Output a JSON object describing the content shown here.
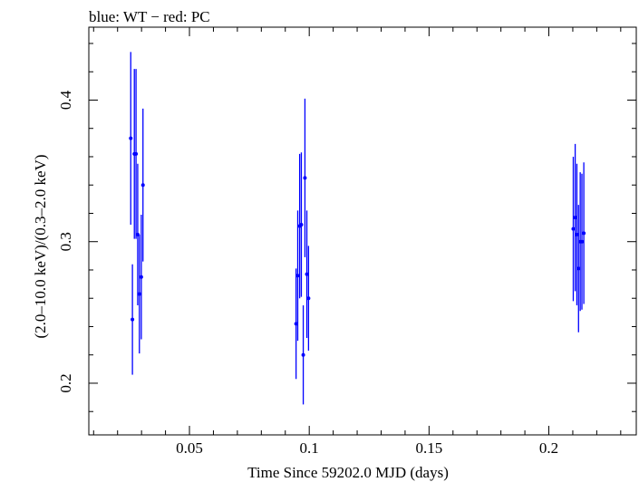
{
  "chart_data": {
    "type": "scatter",
    "title": "blue: WT − red: PC",
    "xlabel": "Time Since 59202.0 MJD (days)",
    "ylabel": "(2.0–10.0 keV)/(0.3–2.0 keV)",
    "xlim": [
      0.008,
      0.2365
    ],
    "ylim": [
      0.1635,
      0.4515
    ],
    "x_ticks": [
      {
        "value": 0.05,
        "label": "0.05"
      },
      {
        "value": 0.1,
        "label": "0.1"
      },
      {
        "value": 0.15,
        "label": "0.15"
      },
      {
        "value": 0.2,
        "label": "0.2"
      }
    ],
    "y_ticks": [
      {
        "value": 0.2,
        "label": "0.2"
      },
      {
        "value": 0.3,
        "label": "0.3"
      },
      {
        "value": 0.4,
        "label": "0.4"
      }
    ],
    "x_minor_step": 0.01,
    "y_minor_step": 0.02,
    "grid": false,
    "series": [
      {
        "name": "WT",
        "color": "#0000ff",
        "points": [
          {
            "x": 0.0255,
            "y": 0.373,
            "err": 0.061
          },
          {
            "x": 0.0262,
            "y": 0.245,
            "err": 0.039
          },
          {
            "x": 0.027,
            "y": 0.362,
            "err": 0.06
          },
          {
            "x": 0.0277,
            "y": 0.362,
            "err": 0.06
          },
          {
            "x": 0.0284,
            "y": 0.305,
            "err": 0.05
          },
          {
            "x": 0.0291,
            "y": 0.263,
            "err": 0.042
          },
          {
            "x": 0.0299,
            "y": 0.275,
            "err": 0.044
          },
          {
            "x": 0.0306,
            "y": 0.34,
            "err": 0.054
          },
          {
            "x": 0.0945,
            "y": 0.242,
            "err": 0.039
          },
          {
            "x": 0.0952,
            "y": 0.276,
            "err": 0.046
          },
          {
            "x": 0.096,
            "y": 0.311,
            "err": 0.051
          },
          {
            "x": 0.0967,
            "y": 0.312,
            "err": 0.051
          },
          {
            "x": 0.0975,
            "y": 0.22,
            "err": 0.035
          },
          {
            "x": 0.0982,
            "y": 0.345,
            "err": 0.056
          },
          {
            "x": 0.099,
            "y": 0.277,
            "err": 0.045
          },
          {
            "x": 0.0997,
            "y": 0.26,
            "err": 0.037
          },
          {
            "x": 0.2102,
            "y": 0.309,
            "err": 0.051
          },
          {
            "x": 0.211,
            "y": 0.317,
            "err": 0.052
          },
          {
            "x": 0.2117,
            "y": 0.305,
            "err": 0.05
          },
          {
            "x": 0.2124,
            "y": 0.281,
            "err": 0.045
          },
          {
            "x": 0.2131,
            "y": 0.3,
            "err": 0.049
          },
          {
            "x": 0.2138,
            "y": 0.3,
            "err": 0.048
          },
          {
            "x": 0.2146,
            "y": 0.306,
            "err": 0.05
          }
        ]
      }
    ]
  }
}
